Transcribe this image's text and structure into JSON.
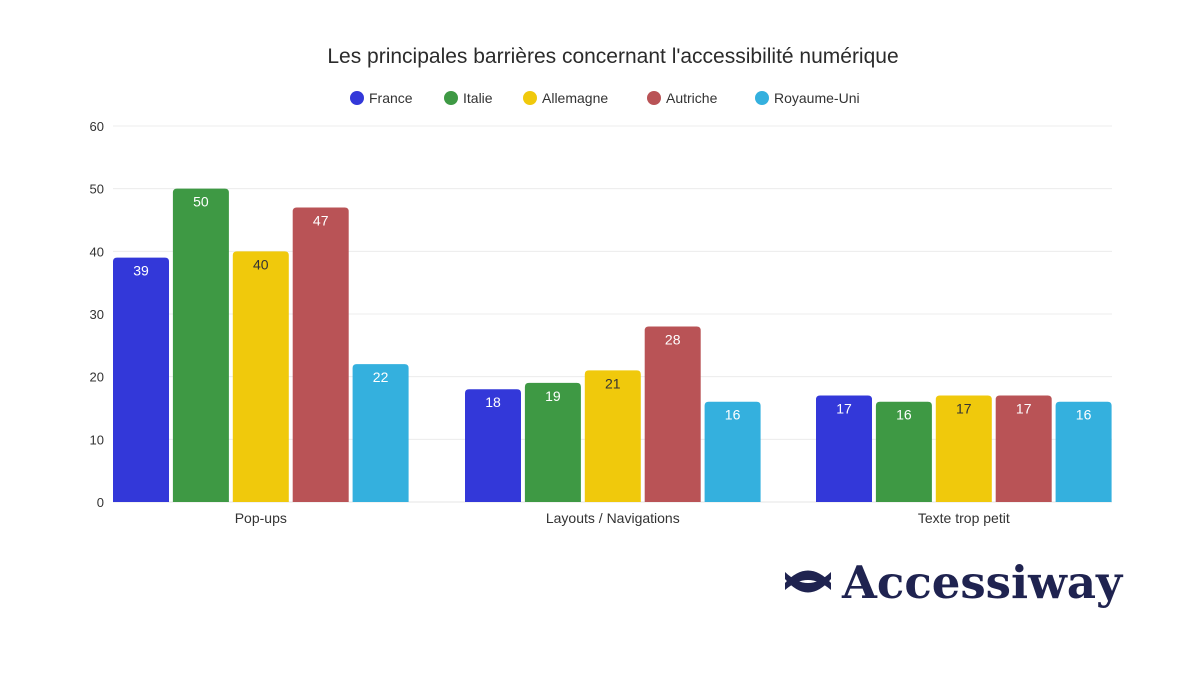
{
  "chart_data": {
    "type": "bar",
    "title": "Les principales barrières concernant l'accessibilité numérique",
    "xlabel": "",
    "ylabel": "",
    "categories": [
      "Pop-ups",
      "Layouts / Navigations",
      "Texte trop petit"
    ],
    "series": [
      {
        "name": "France",
        "color": "#3338d9",
        "label_color": "#ffffff",
        "values": [
          39,
          18,
          17
        ]
      },
      {
        "name": "Italie",
        "color": "#3e9944",
        "label_color": "#ffffff",
        "values": [
          50,
          19,
          16
        ]
      },
      {
        "name": "Allemagne",
        "color": "#f0c90c",
        "label_color": "#333333",
        "values": [
          40,
          21,
          17
        ]
      },
      {
        "name": "Autriche",
        "color": "#b95356",
        "label_color": "#ffffff",
        "values": [
          47,
          28,
          17
        ]
      },
      {
        "name": "Royaume-Uni",
        "color": "#34b0de",
        "label_color": "#ffffff",
        "values": [
          22,
          16,
          16
        ]
      }
    ],
    "ylim": [
      0,
      60
    ],
    "yticks": [
      "0",
      "10",
      "20",
      "30",
      "40",
      "50",
      "60"
    ],
    "grid": true,
    "legend_position": "top-center",
    "data_labels": true
  },
  "brand": {
    "name": "Accessiway",
    "color": "#1f2350"
  }
}
